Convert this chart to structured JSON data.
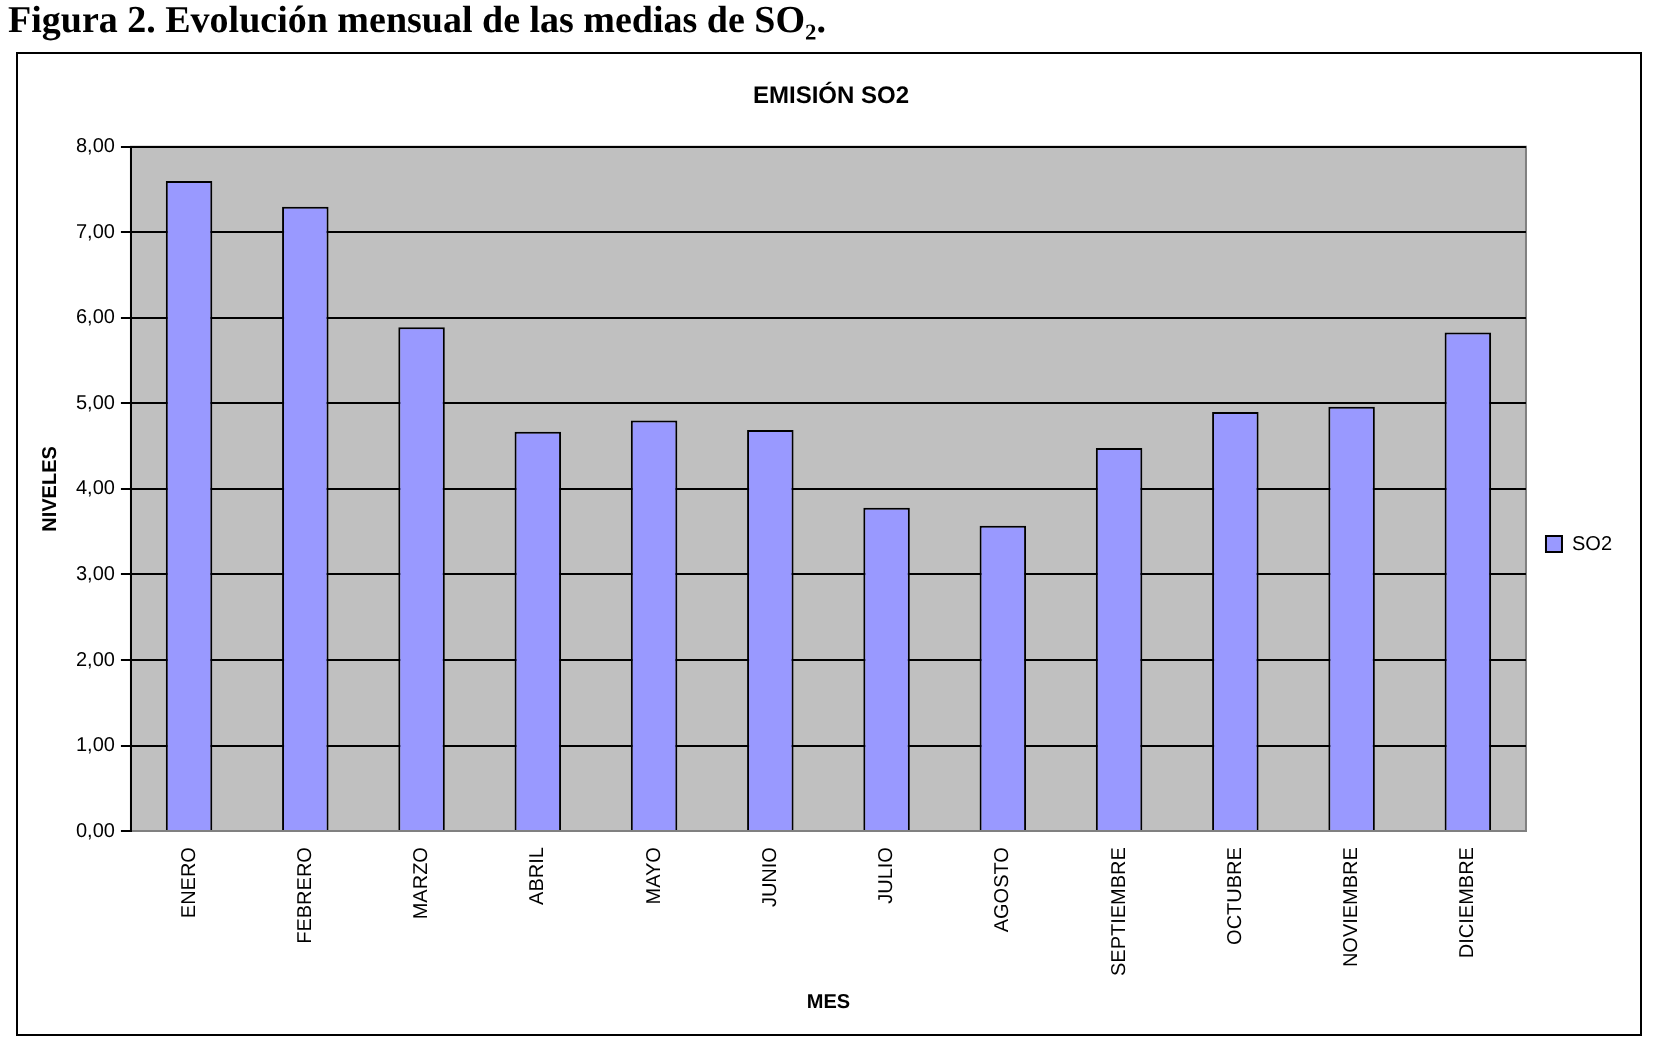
{
  "chart_data": {
    "type": "bar",
    "title": "EMISIÓN SO2",
    "xlabel": "MES",
    "ylabel": "NIVELES",
    "annotations": [
      "Figura 2. Evolución mensual de las medias de SO₂."
    ],
    "categories": [
      "ENERO",
      "FEBRERO",
      "MARZO",
      "ABRIL",
      "MAYO",
      "JUNIO",
      "JULIO",
      "AGOSTO",
      "SEPTIEMBRE",
      "OCTUBRE",
      "NOVIEMBRE",
      "DICIEMBRE"
    ],
    "series": [
      {
        "name": "SO2",
        "color": "#9999ff",
        "values": [
          7.6,
          7.3,
          5.89,
          4.67,
          4.8,
          4.69,
          3.78,
          3.57,
          4.48,
          4.9,
          4.96,
          5.83
        ]
      }
    ],
    "ylim": [
      0,
      8
    ],
    "yticks": [
      {
        "value": 0,
        "label": "0,00"
      },
      {
        "value": 1,
        "label": "1,00"
      },
      {
        "value": 2,
        "label": "2,00"
      },
      {
        "value": 3,
        "label": "3,00"
      },
      {
        "value": 4,
        "label": "4,00"
      },
      {
        "value": 5,
        "label": "5,00"
      },
      {
        "value": 6,
        "label": "6,00"
      },
      {
        "value": 7,
        "label": "7,00"
      },
      {
        "value": 8,
        "label": "8,00"
      }
    ],
    "grid": "y",
    "legend": "right"
  }
}
